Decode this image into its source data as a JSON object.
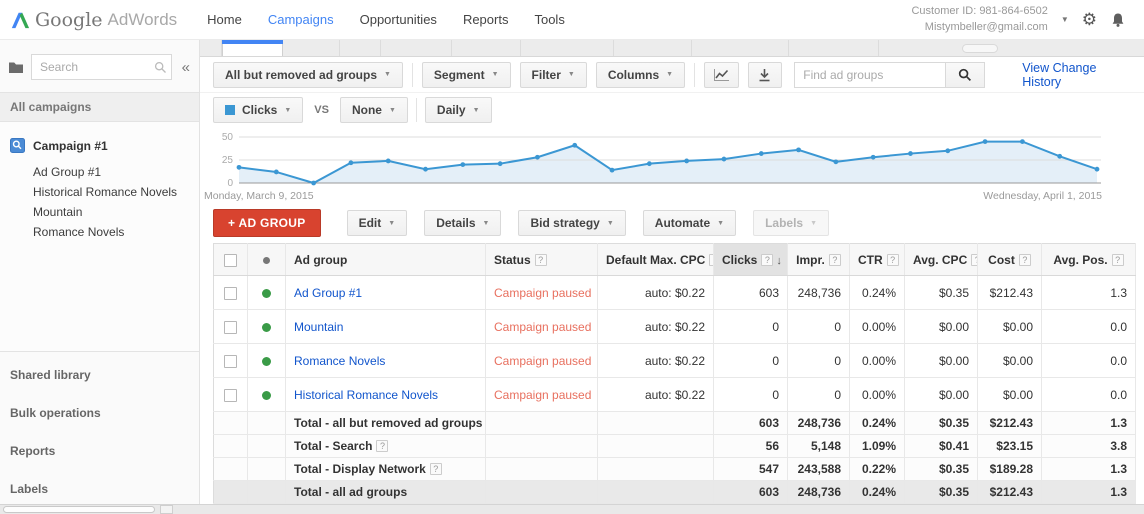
{
  "header": {
    "logo_google": "Google",
    "logo_adwords": "AdWords",
    "nav": [
      {
        "label": "Home",
        "active": false
      },
      {
        "label": "Campaigns",
        "active": true
      },
      {
        "label": "Opportunities",
        "active": false
      },
      {
        "label": "Reports",
        "active": false
      },
      {
        "label": "Tools",
        "active": false
      }
    ],
    "customer_id": "Customer ID: 981-864-6502",
    "email": "Mistymbeller@gmail.com"
  },
  "sidebar": {
    "search_placeholder": "Search",
    "collapse_glyph": "«",
    "all_campaigns": "All campaigns",
    "campaign_name": "Campaign #1",
    "ad_groups": [
      "Ad Group #1",
      "Historical Romance Novels",
      "Mountain",
      "Romance Novels"
    ],
    "footer_items": [
      "Shared library",
      "Bulk operations",
      "Reports",
      "Labels"
    ]
  },
  "toolbar": {
    "scope_button": "All but removed ad groups",
    "segment_button": "Segment",
    "filter_button": "Filter",
    "columns_button": "Columns",
    "find_placeholder": "Find ad groups",
    "change_history_link": "View Change History"
  },
  "graph_controls": {
    "metric_button": "Clicks",
    "vs_label": "VS",
    "compare_button": "None",
    "interval_button": "Daily"
  },
  "chart_data": {
    "type": "line",
    "interval": "Daily",
    "series": [
      {
        "name": "Clicks",
        "values": [
          17,
          12,
          0,
          22,
          24,
          15,
          20,
          21,
          28,
          41,
          14,
          21,
          24,
          26,
          32,
          36,
          23,
          28,
          32,
          35,
          45,
          45,
          29,
          15
        ]
      }
    ],
    "x_start_label": "Monday, March 9, 2015",
    "x_end_label": "Wednesday, April 1, 2015",
    "y_ticks": [
      0,
      25,
      50
    ],
    "ylim": [
      0,
      50
    ],
    "grid": true,
    "legend_position": "none",
    "line_color": "#3b97d3",
    "fill_color": "#e4eff8"
  },
  "actions": {
    "add_button": "+ AD GROUP",
    "edit_button": "Edit",
    "details_button": "Details",
    "bid_strategy_button": "Bid strategy",
    "automate_button": "Automate",
    "labels_button": "Labels"
  },
  "table": {
    "columns": [
      {
        "label": "Ad group",
        "help": false,
        "sorted": false
      },
      {
        "label": "Status",
        "help": true,
        "sorted": false
      },
      {
        "label": "Default Max. CPC",
        "help": true,
        "sorted": false
      },
      {
        "label": "Clicks",
        "help": true,
        "sorted": true
      },
      {
        "label": "Impr.",
        "help": true,
        "sorted": false
      },
      {
        "label": "CTR",
        "help": true,
        "sorted": false
      },
      {
        "label": "Avg. CPC",
        "help": true,
        "sorted": false
      },
      {
        "label": "Cost",
        "help": true,
        "sorted": false
      },
      {
        "label": "Avg. Pos.",
        "help": true,
        "sorted": false
      }
    ],
    "rows": [
      {
        "name": "Ad Group #1",
        "status": "Campaign paused",
        "max_cpc": "auto: $0.22",
        "clicks": "603",
        "impr": "248,736",
        "ctr": "0.24%",
        "avg_cpc": "$0.35",
        "cost": "$212.43",
        "avg_pos": "1.3"
      },
      {
        "name": "Mountain",
        "status": "Campaign paused",
        "max_cpc": "auto: $0.22",
        "clicks": "0",
        "impr": "0",
        "ctr": "0.00%",
        "avg_cpc": "$0.00",
        "cost": "$0.00",
        "avg_pos": "0.0"
      },
      {
        "name": "Romance Novels",
        "status": "Campaign paused",
        "max_cpc": "auto: $0.22",
        "clicks": "0",
        "impr": "0",
        "ctr": "0.00%",
        "avg_cpc": "$0.00",
        "cost": "$0.00",
        "avg_pos": "0.0"
      },
      {
        "name": "Historical Romance Novels",
        "status": "Campaign paused",
        "max_cpc": "auto: $0.22",
        "clicks": "0",
        "impr": "0",
        "ctr": "0.00%",
        "avg_cpc": "$0.00",
        "cost": "$0.00",
        "avg_pos": "0.0"
      }
    ],
    "totals": [
      {
        "label": "Total - all but removed ad groups",
        "help": false,
        "shaded": false,
        "clicks": "603",
        "impr": "248,736",
        "ctr": "0.24%",
        "avg_cpc": "$0.35",
        "cost": "$212.43",
        "avg_pos": "1.3"
      },
      {
        "label": "Total - Search",
        "help": true,
        "shaded": false,
        "clicks": "56",
        "impr": "5,148",
        "ctr": "1.09%",
        "avg_cpc": "$0.41",
        "cost": "$23.15",
        "avg_pos": "3.8"
      },
      {
        "label": "Total - Display Network",
        "help": true,
        "shaded": false,
        "clicks": "547",
        "impr": "243,588",
        "ctr": "0.22%",
        "avg_cpc": "$0.35",
        "cost": "$189.28",
        "avg_pos": "1.3"
      },
      {
        "label": "Total - all ad groups",
        "help": false,
        "shaded": true,
        "clicks": "603",
        "impr": "248,736",
        "ctr": "0.24%",
        "avg_cpc": "$0.35",
        "cost": "$212.43",
        "avg_pos": "1.3"
      }
    ]
  },
  "colors": {
    "accent_blue": "#4285f4",
    "link_blue": "#1155cc",
    "button_red": "#d8432f",
    "paused_orange": "#e8705f",
    "enabled_green": "#3a9b47"
  }
}
